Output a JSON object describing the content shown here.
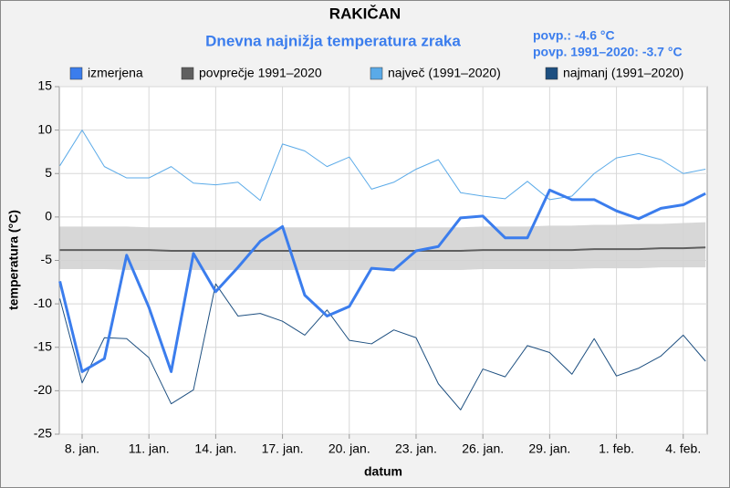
{
  "chart_data": {
    "type": "line",
    "title": "RAKIČAN",
    "subtitle": "Dnevna najnižja temperatura zraka",
    "annotations": [
      "povp.: -4.6 °C",
      "povp. 1991–2020: -3.7 °C"
    ],
    "xlabel": "datum",
    "ylabel": "temperatura (°C)",
    "categories": [
      null,
      "8. jan.",
      null,
      null,
      "11. jan.",
      null,
      null,
      "14. jan.",
      null,
      null,
      "17. jan.",
      null,
      null,
      "20. jan.",
      null,
      null,
      "23. jan.",
      null,
      null,
      "26. jan.",
      null,
      null,
      "29. jan.",
      null,
      null,
      "1. feb.",
      null,
      null,
      "4. feb.",
      null
    ],
    "ylim": [
      -25,
      15
    ],
    "yticks": [
      -25,
      -20,
      -15,
      -10,
      -5,
      0,
      5,
      10,
      15
    ],
    "grid": true,
    "legend": "top",
    "band": {
      "color": "#d3d3d3",
      "upper": [
        -1.1,
        -1.1,
        -1.1,
        -1.1,
        -1.2,
        -1.2,
        -1.2,
        -1.2,
        -1.2,
        -1.2,
        -1.2,
        -1.2,
        -1.2,
        -1.2,
        -1.2,
        -1.2,
        -1.2,
        -1.2,
        -1.2,
        -1.1,
        -1.1,
        -1.1,
        -1.0,
        -1.0,
        -0.9,
        -0.9,
        -0.8,
        -0.8,
        -0.7,
        -0.6
      ],
      "lower": [
        -6.0,
        -6.0,
        -6.0,
        -6.1,
        -6.1,
        -6.1,
        -6.1,
        -6.1,
        -6.1,
        -6.1,
        -6.1,
        -6.1,
        -6.1,
        -6.1,
        -6.1,
        -6.1,
        -6.1,
        -6.1,
        -6.1,
        -6.0,
        -6.0,
        -6.0,
        -6.0,
        -6.0,
        -5.9,
        -5.9,
        -5.9,
        -5.8,
        -5.8,
        -5.8
      ]
    },
    "series": [
      {
        "name": "izmerjena",
        "color": "#3b7ded",
        "width": 3,
        "values": [
          -7.4,
          -17.8,
          -16.3,
          -4.4,
          -10.4,
          -17.8,
          -4.2,
          -8.6,
          -5.8,
          -2.8,
          -1.1,
          -9.0,
          -11.4,
          -10.3,
          -5.9,
          -6.1,
          -3.9,
          -3.4,
          -0.1,
          0.1,
          -2.4,
          -2.4,
          3.1,
          2.0,
          2.0,
          0.7,
          -0.2,
          1.0,
          1.4,
          2.7
        ]
      },
      {
        "name": "povprečje 1991–2020",
        "color": "#5f5f5f",
        "width": 2,
        "values": [
          -3.8,
          -3.8,
          -3.8,
          -3.8,
          -3.8,
          -3.9,
          -3.9,
          -3.9,
          -3.9,
          -3.9,
          -3.9,
          -3.9,
          -3.9,
          -3.9,
          -3.9,
          -3.9,
          -3.9,
          -3.9,
          -3.9,
          -3.8,
          -3.8,
          -3.8,
          -3.8,
          -3.8,
          -3.7,
          -3.7,
          -3.7,
          -3.6,
          -3.6,
          -3.5
        ]
      },
      {
        "name": "največ (1991–2020)",
        "color": "#5aaae8",
        "width": 1,
        "values": [
          5.9,
          10.0,
          5.8,
          4.5,
          4.5,
          5.8,
          3.9,
          3.7,
          4.0,
          1.9,
          8.4,
          7.6,
          5.8,
          6.9,
          3.2,
          4.0,
          5.5,
          6.6,
          2.8,
          2.4,
          2.1,
          4.1,
          2.0,
          2.4,
          5.0,
          6.8,
          7.3,
          6.6,
          5.0,
          5.5
        ]
      },
      {
        "name": "najmanj (1991–2020)",
        "color": "#1d4f80",
        "width": 1,
        "values": [
          -9.4,
          -19.1,
          -13.9,
          -14.0,
          -16.2,
          -21.5,
          -19.9,
          -7.7,
          -11.4,
          -11.1,
          -12.0,
          -13.6,
          -10.7,
          -14.2,
          -14.6,
          -13.0,
          -13.9,
          -19.2,
          -22.2,
          -17.5,
          -18.4,
          -14.8,
          -15.6,
          -18.1,
          -14.0,
          -18.3,
          -17.4,
          -16.0,
          -13.6,
          -16.6
        ]
      }
    ]
  }
}
